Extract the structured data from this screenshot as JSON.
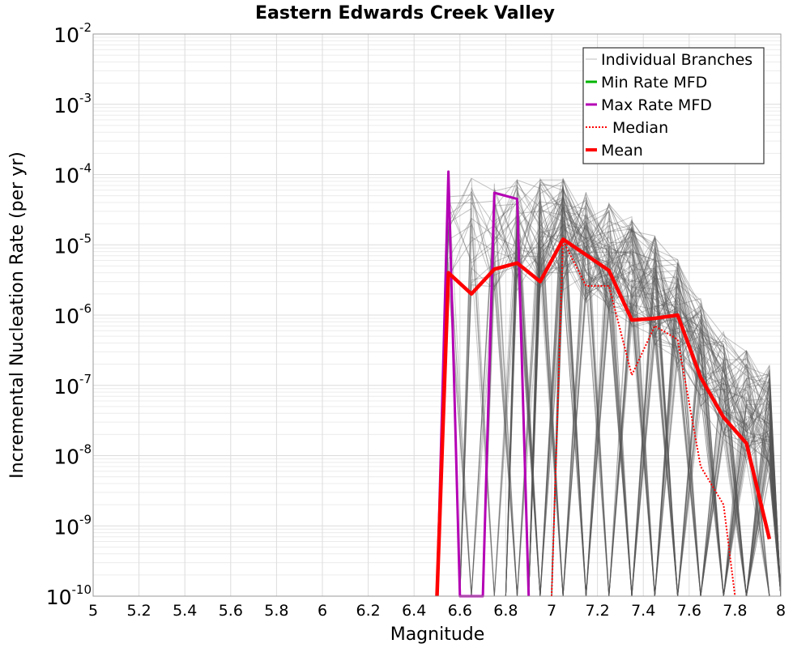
{
  "chart_data": {
    "type": "line",
    "title": "Eastern Edwards Creek Valley",
    "xlabel": "Magnitude",
    "ylabel": "Incremental Nucleation Rate (per yr)",
    "xlim": [
      5,
      8
    ],
    "ylim": [
      1e-10,
      0.01
    ],
    "yscale": "log",
    "grid": true,
    "legend_position": "top-right",
    "x_ticks": [
      "5",
      "5.2",
      "5.4",
      "5.6",
      "5.8",
      "6",
      "6.2",
      "6.4",
      "6.6",
      "6.8",
      "7",
      "7.2",
      "7.4",
      "7.6",
      "7.8",
      "8"
    ],
    "y_ticks": [
      {
        "base": "10",
        "exp": "-2",
        "value": 0.01
      },
      {
        "base": "10",
        "exp": "-3",
        "value": 0.001
      },
      {
        "base": "10",
        "exp": "-4",
        "value": 0.0001
      },
      {
        "base": "10",
        "exp": "-5",
        "value": 1e-05
      },
      {
        "base": "10",
        "exp": "-6",
        "value": 1e-06
      },
      {
        "base": "10",
        "exp": "-7",
        "value": 1e-07
      },
      {
        "base": "10",
        "exp": "-8",
        "value": 1e-08
      },
      {
        "base": "10",
        "exp": "-9",
        "value": 1e-09
      },
      {
        "base": "10",
        "exp": "-10",
        "value": 1e-10
      }
    ],
    "series": [
      {
        "name": "Individual Branches",
        "color": "#555555",
        "style": "thin",
        "note": "many overlapping branch MFD curves drawn in gray"
      },
      {
        "name": "Min Rate MFD",
        "color": "#00b400",
        "style": "solid",
        "x": [],
        "y": []
      },
      {
        "name": "Max Rate MFD",
        "color": "#b400b4",
        "style": "solid",
        "x": [
          6.5,
          6.55,
          6.6,
          6.7,
          6.75,
          6.85,
          6.9
        ],
        "y": [
          1e-10,
          0.00011,
          1e-10,
          1e-10,
          5.5e-05,
          4.5e-05,
          1e-10
        ]
      },
      {
        "name": "Median",
        "color": "#ff0000",
        "style": "dotted",
        "x": [
          7.0,
          7.05,
          7.15,
          7.25,
          7.35,
          7.45,
          7.55,
          7.65,
          7.75,
          7.8
        ],
        "y": [
          1e-10,
          1.15e-05,
          2.6e-06,
          2.6e-06,
          1.4e-07,
          7e-07,
          4.5e-07,
          7e-09,
          2e-09,
          1e-10
        ]
      },
      {
        "name": "Mean",
        "color": "#ff0000",
        "style": "thick",
        "x": [
          6.5,
          6.55,
          6.65,
          6.75,
          6.85,
          6.95,
          7.05,
          7.15,
          7.25,
          7.35,
          7.45,
          7.55,
          7.65,
          7.75,
          7.85,
          7.95
        ],
        "y": [
          1e-10,
          4e-06,
          2e-06,
          4.5e-06,
          5.5e-06,
          3e-06,
          1.2e-05,
          7.2e-06,
          4.3e-06,
          8.5e-07,
          9e-07,
          1e-06,
          1.3e-07,
          3.5e-08,
          1.5e-08,
          6.5e-10
        ]
      }
    ]
  }
}
